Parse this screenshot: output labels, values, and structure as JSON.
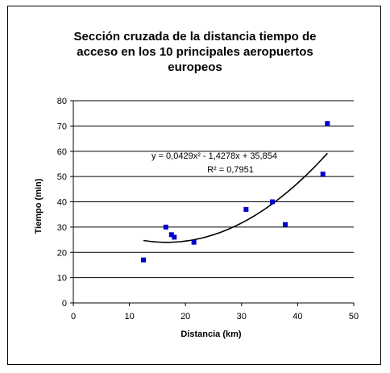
{
  "chart_data": {
    "type": "scatter",
    "title_lines": [
      "Sección cruzada de la distancia tiempo de",
      "acceso en los 10 principales aeropuertos",
      "europeos"
    ],
    "xlabel": "Distancia (km)",
    "ylabel": "Tiempo (min)",
    "xlim": [
      0,
      50
    ],
    "ylim": [
      0,
      80
    ],
    "xticks": [
      0,
      10,
      20,
      30,
      40,
      50
    ],
    "yticks": [
      0,
      10,
      20,
      30,
      40,
      50,
      60,
      70,
      80
    ],
    "grid": "horizontal",
    "series": [
      {
        "color": "#0000cc",
        "points": [
          {
            "x": 12.5,
            "y": 17
          },
          {
            "x": 16.5,
            "y": 30
          },
          {
            "x": 17.5,
            "y": 27
          },
          {
            "x": 18.0,
            "y": 26
          },
          {
            "x": 21.5,
            "y": 24
          },
          {
            "x": 30.8,
            "y": 37
          },
          {
            "x": 35.5,
            "y": 40
          },
          {
            "x": 37.8,
            "y": 31
          },
          {
            "x": 44.5,
            "y": 51
          },
          {
            "x": 45.3,
            "y": 71
          }
        ]
      }
    ],
    "trendline": {
      "type": "polynomial",
      "coefficients": [
        0.0429,
        -1.4278,
        35.854
      ],
      "x_range": [
        12.5,
        45.3
      ],
      "equation_text": "y = 0,0429x² - 1,4278x + 35,854",
      "r2_text": "R² = 0,7951"
    }
  }
}
